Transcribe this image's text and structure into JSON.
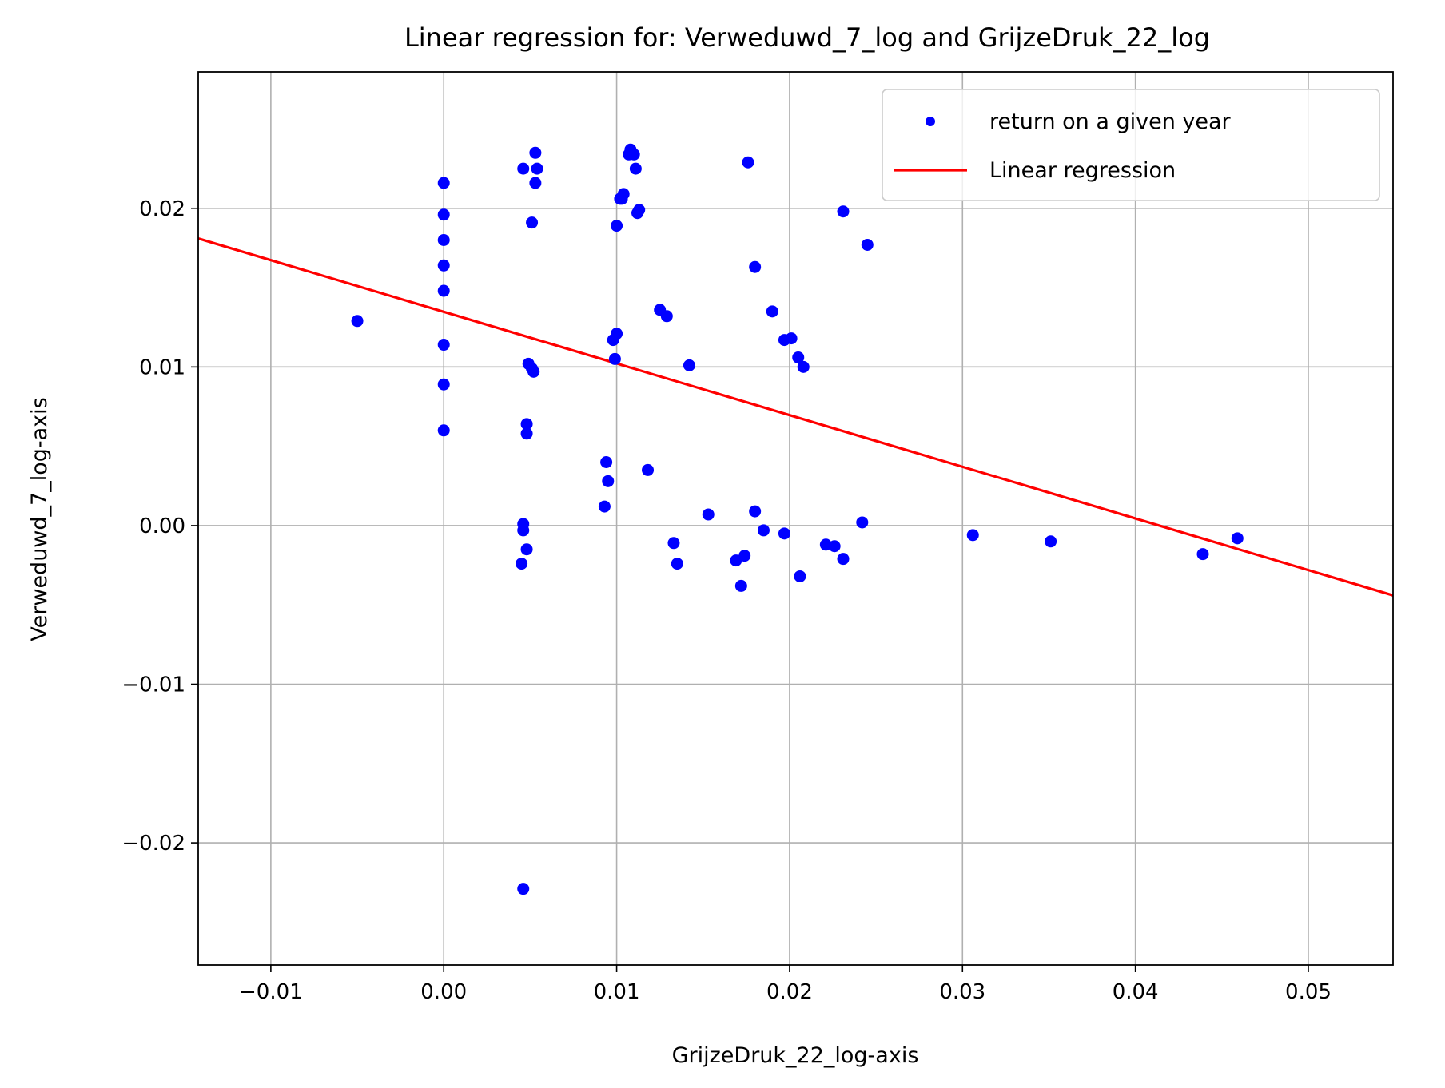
{
  "chart_data": {
    "type": "scatter",
    "title": "Linear regression for: Verweduwd_7_log and GrijzeDruk_22_log",
    "xlabel": "GrijzeDruk_22_log-axis",
    "ylabel": "Verweduwd_7_log-axis",
    "xlim": [
      -0.0142,
      0.0549
    ],
    "ylim": [
      -0.0277,
      0.0286
    ],
    "xticks": [
      -0.01,
      0.0,
      0.01,
      0.02,
      0.03,
      0.04,
      0.05
    ],
    "xtick_labels": [
      "−0.01",
      "0.00",
      "0.01",
      "0.02",
      "0.03",
      "0.04",
      "0.05"
    ],
    "yticks": [
      -0.02,
      -0.01,
      0.0,
      0.01,
      0.02
    ],
    "ytick_labels": [
      "−0.02",
      "−0.01",
      "0.00",
      "0.01",
      "0.02"
    ],
    "grid": true,
    "legend_position": "top-right",
    "series": [
      {
        "name": "return on a given year",
        "kind": "scatter",
        "color": "#0000ff",
        "points": [
          [
            -0.005,
            0.0129
          ],
          [
            0.0,
            0.0216
          ],
          [
            0.0,
            0.0196
          ],
          [
            0.0,
            0.018
          ],
          [
            0.0,
            0.0164
          ],
          [
            0.0,
            0.0148
          ],
          [
            0.0,
            0.0114
          ],
          [
            0.0,
            0.0089
          ],
          [
            0.0,
            0.006
          ],
          [
            0.0046,
            0.0225
          ],
          [
            0.0053,
            0.0235
          ],
          [
            0.0054,
            0.0225
          ],
          [
            0.0053,
            0.0216
          ],
          [
            0.0051,
            0.0191
          ],
          [
            0.0049,
            0.0102
          ],
          [
            0.0051,
            0.0099
          ],
          [
            0.0052,
            0.0097
          ],
          [
            0.0048,
            0.0064
          ],
          [
            0.0048,
            0.0058
          ],
          [
            0.0046,
            0.0001
          ],
          [
            0.0046,
            -0.0003
          ],
          [
            0.0048,
            -0.0015
          ],
          [
            0.0045,
            -0.0024
          ],
          [
            0.0046,
            -0.0229
          ],
          [
            0.0108,
            0.0237
          ],
          [
            0.0107,
            0.0234
          ],
          [
            0.011,
            0.0234
          ],
          [
            0.0111,
            0.0225
          ],
          [
            0.0104,
            0.0209
          ],
          [
            0.0103,
            0.0206
          ],
          [
            0.0102,
            0.0206
          ],
          [
            0.0113,
            0.0199
          ],
          [
            0.0112,
            0.0197
          ],
          [
            0.01,
            0.0189
          ],
          [
            0.0176,
            0.0229
          ],
          [
            0.0231,
            0.0198
          ],
          [
            0.0245,
            0.0177
          ],
          [
            0.018,
            0.0163
          ],
          [
            0.0125,
            0.0136
          ],
          [
            0.0129,
            0.0132
          ],
          [
            0.019,
            0.0135
          ],
          [
            0.01,
            0.0121
          ],
          [
            0.0098,
            0.0117
          ],
          [
            0.0099,
            0.0105
          ],
          [
            0.0197,
            0.0117
          ],
          [
            0.0201,
            0.0118
          ],
          [
            0.0205,
            0.0106
          ],
          [
            0.0208,
            0.01
          ],
          [
            0.0142,
            0.0101
          ],
          [
            0.0094,
            0.004
          ],
          [
            0.0095,
            0.0028
          ],
          [
            0.0118,
            0.0035
          ],
          [
            0.0093,
            0.0012
          ],
          [
            0.0153,
            0.0007
          ],
          [
            0.018,
            0.0009
          ],
          [
            0.0185,
            -0.0003
          ],
          [
            0.0197,
            -0.0005
          ],
          [
            0.0242,
            0.0002
          ],
          [
            0.0133,
            -0.0011
          ],
          [
            0.0135,
            -0.0024
          ],
          [
            0.0169,
            -0.0022
          ],
          [
            0.0174,
            -0.0019
          ],
          [
            0.0172,
            -0.0038
          ],
          [
            0.0206,
            -0.0032
          ],
          [
            0.0221,
            -0.0012
          ],
          [
            0.0226,
            -0.0013
          ],
          [
            0.0231,
            -0.0021
          ],
          [
            0.0306,
            -0.0006
          ],
          [
            0.0351,
            -0.001
          ],
          [
            0.0439,
            -0.0018
          ],
          [
            0.0459,
            -0.0008
          ]
        ]
      },
      {
        "name": "Linear regression",
        "kind": "line",
        "color": "#ff0000",
        "points": [
          [
            -0.0142,
            0.0181
          ],
          [
            0.0549,
            -0.0044
          ]
        ]
      }
    ]
  }
}
